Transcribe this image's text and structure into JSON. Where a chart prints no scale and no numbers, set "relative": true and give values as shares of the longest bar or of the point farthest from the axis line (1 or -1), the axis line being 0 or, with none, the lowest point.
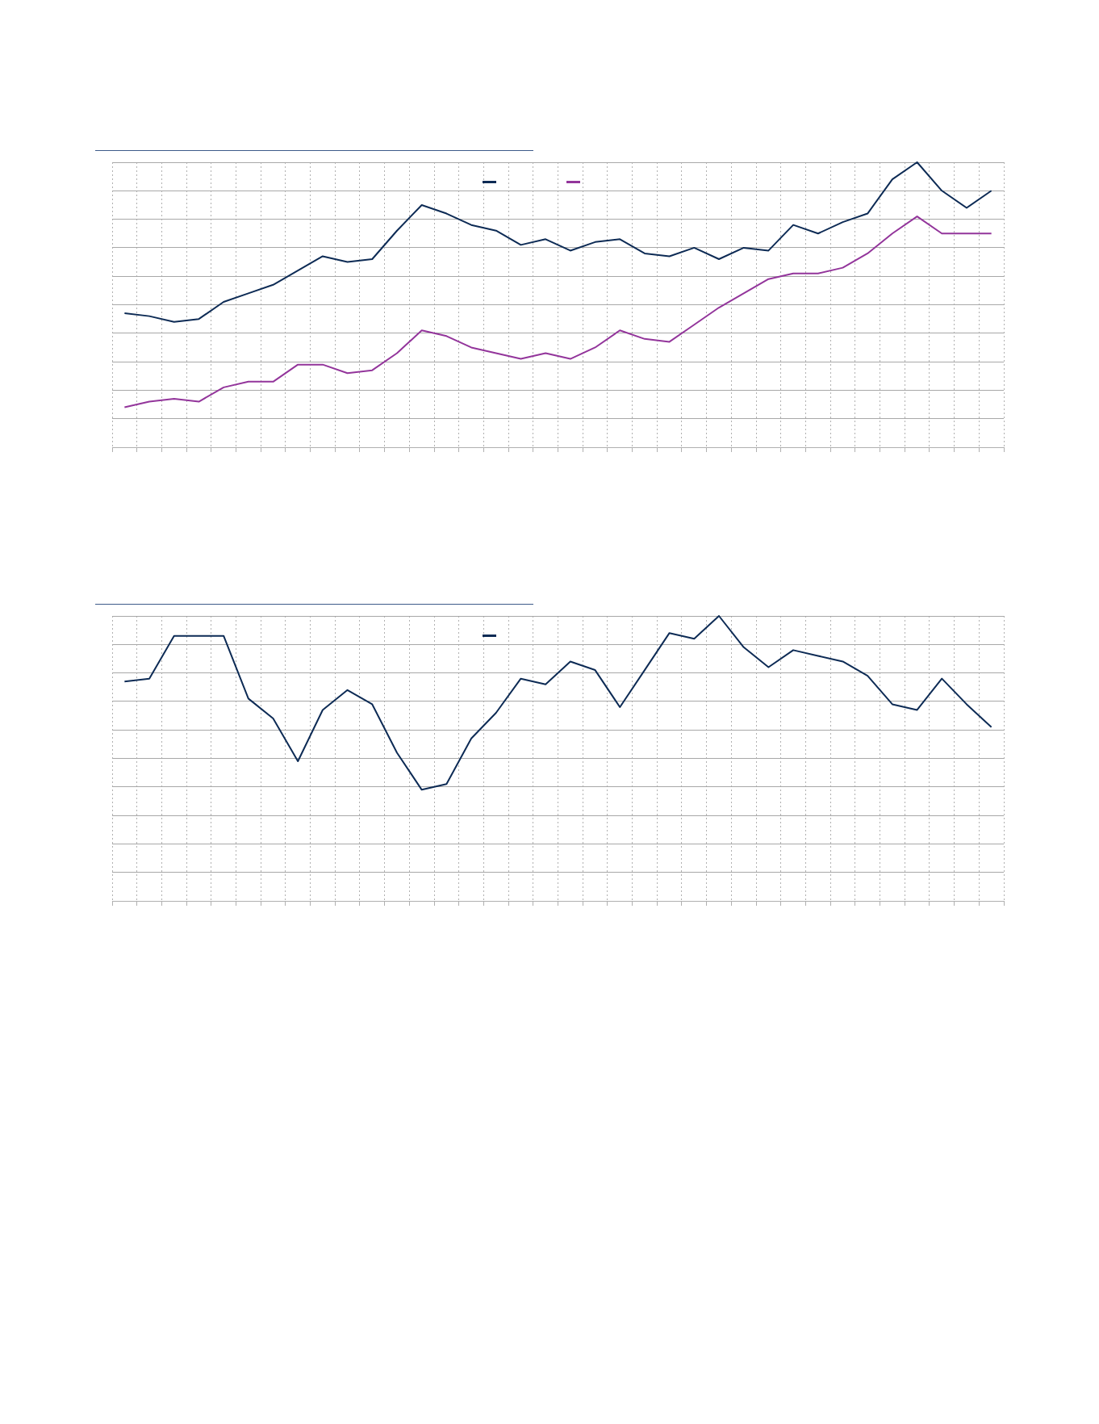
{
  "chart_data": [
    {
      "type": "line",
      "relative": true,
      "grid": true,
      "categories": [
        null,
        null,
        null,
        null,
        null,
        null,
        null,
        null,
        null,
        null,
        null,
        null,
        null,
        null,
        null,
        null,
        null,
        null,
        null,
        null,
        null,
        null,
        null,
        null,
        null,
        null,
        null,
        null,
        null,
        null,
        null,
        null,
        null,
        null,
        null,
        null
      ],
      "series": [
        {
          "color": "#0d2b55",
          "values": [
            0.47,
            0.46,
            0.44,
            0.45,
            0.51,
            0.54,
            0.57,
            0.62,
            0.67,
            0.65,
            0.66,
            0.76,
            0.85,
            0.82,
            0.78,
            0.76,
            0.71,
            0.73,
            0.69,
            0.72,
            0.73,
            0.68,
            0.67,
            0.7,
            0.66,
            0.7,
            0.69,
            0.78,
            0.75,
            0.79,
            0.82,
            0.94,
            1,
            0.9,
            0.84,
            0.9
          ]
        },
        {
          "color": "#93359b",
          "values": [
            0.14,
            0.16,
            0.17,
            0.16,
            0.21,
            0.23,
            0.23,
            0.29,
            0.29,
            0.26,
            0.27,
            0.33,
            0.41,
            0.39,
            0.35,
            0.33,
            0.31,
            0.33,
            0.31,
            0.35,
            0.41,
            0.38,
            0.37,
            0.43,
            0.49,
            0.54,
            0.59,
            0.61,
            0.61,
            0.63,
            0.68,
            0.75,
            0.81,
            0.75,
            0.75,
            0.75
          ]
        }
      ]
    },
    {
      "type": "line",
      "relative": true,
      "grid": true,
      "categories": [
        null,
        null,
        null,
        null,
        null,
        null,
        null,
        null,
        null,
        null,
        null,
        null,
        null,
        null,
        null,
        null,
        null,
        null,
        null,
        null,
        null,
        null,
        null,
        null,
        null,
        null,
        null,
        null,
        null,
        null,
        null,
        null,
        null,
        null,
        null,
        null
      ],
      "series": [
        {
          "color": "#0d2b55",
          "values": [
            0.77,
            0.78,
            0.93,
            0.93,
            0.93,
            0.71,
            0.64,
            0.49,
            0.67,
            0.74,
            0.69,
            0.52,
            0.39,
            0.41,
            0.57,
            0.66,
            0.78,
            0.76,
            0.84,
            0.81,
            0.68,
            0.81,
            0.94,
            0.92,
            1,
            0.89,
            0.82,
            0.88,
            0.86,
            0.84,
            0.79,
            0.69,
            0.67,
            0.78,
            0.69,
            0.61
          ]
        }
      ]
    }
  ]
}
